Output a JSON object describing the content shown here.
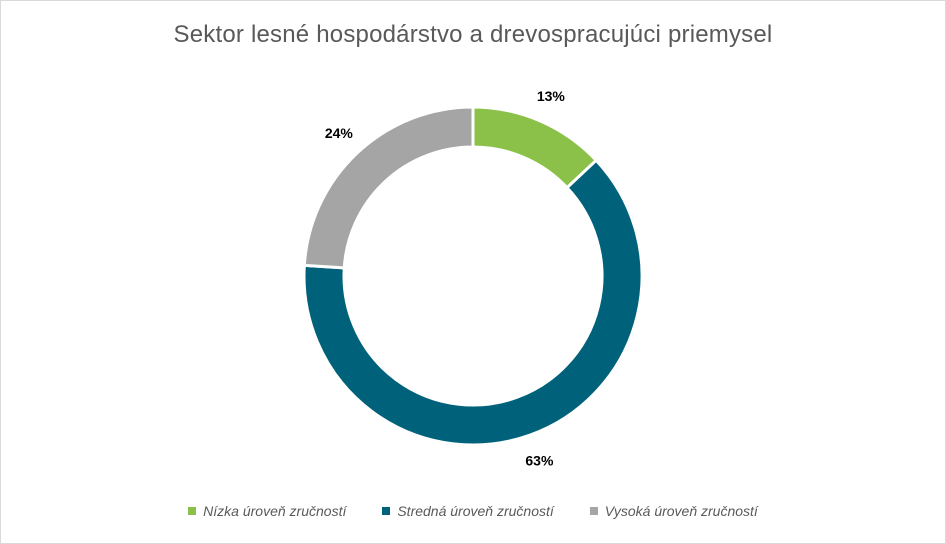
{
  "chart_data": {
    "type": "pie",
    "variant": "donut",
    "title": "Sektor lesné hospodárstvo a drevospracujúci priemysel",
    "categories": [
      "Nízka úroveň zručností",
      "Stredná úroveň zručností",
      "Vysoká úroveň zručností"
    ],
    "values": [
      13,
      63,
      24
    ],
    "labels": [
      "13%",
      "63%",
      "24%"
    ],
    "colors": [
      "#8bc148",
      "#00627a",
      "#a5a5a5"
    ],
    "legend": "bottom"
  }
}
